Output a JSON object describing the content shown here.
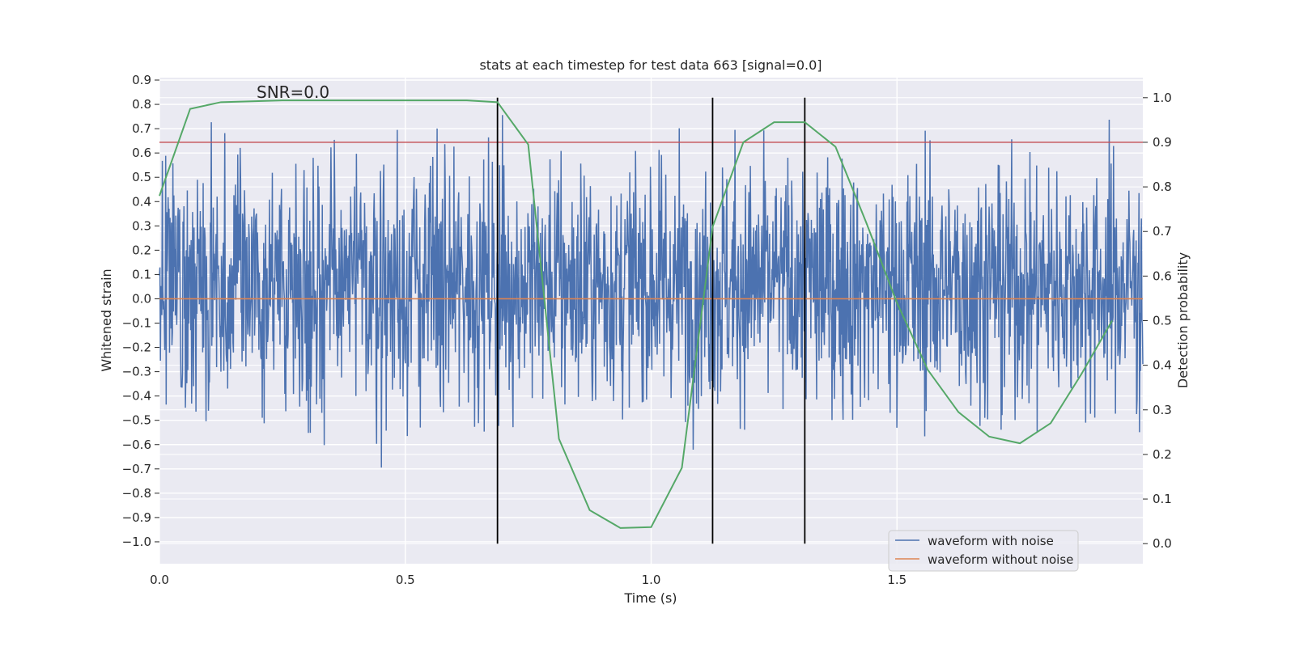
{
  "chart_data": {
    "type": "line",
    "title": "stats at each timestep for test data 663 [signal=0.0]",
    "xlabel": "Time (s)",
    "ylabel": "Whitened strain",
    "y2label": "Detection probability",
    "xlim": [
      0.0,
      2.0
    ],
    "ylim": [
      -1.09,
      0.91
    ],
    "y2lim": [
      -0.045,
      1.045
    ],
    "x_ticks": [
      0.0,
      0.5,
      1.0,
      1.5
    ],
    "x_tick_labels": [
      "0.0",
      "0.5",
      "1.0",
      "1.5"
    ],
    "y_ticks": [
      0.9,
      0.8,
      0.7,
      0.6,
      0.5,
      0.4,
      0.3,
      0.2,
      0.1,
      0.0,
      -0.1,
      -0.2,
      -0.3,
      -0.4,
      -0.5,
      -0.6,
      -0.7,
      -0.8,
      -0.9,
      -1.0
    ],
    "y_tick_labels": [
      "0.9",
      "0.8",
      "0.7",
      "0.6",
      "0.5",
      "0.4",
      "0.3",
      "0.2",
      "0.1",
      "0.0",
      "−0.1",
      "−0.2",
      "−0.3",
      "−0.4",
      "−0.5",
      "−0.6",
      "−0.7",
      "−0.8",
      "−0.9",
      "−1.0"
    ],
    "y2_ticks": [
      1.0,
      0.9,
      0.8,
      0.7,
      0.6,
      0.5,
      0.4,
      0.3,
      0.2,
      0.1,
      0.0
    ],
    "y2_tick_labels": [
      "1.0",
      "0.9",
      "0.8",
      "0.7",
      "0.6",
      "0.5",
      "0.4",
      "0.3",
      "0.2",
      "0.1",
      "0.0"
    ],
    "grid": true,
    "legend_position": "bottom-right",
    "annotation": "SNR=0.0",
    "series": [
      {
        "name": "waveform with noise",
        "axis": "left",
        "color": "#4c72b0",
        "kind": "noise",
        "sample_count": 2048,
        "amplitude_range": [
          -1.0,
          0.82
        ],
        "x_range": [
          0.0,
          2.0
        ]
      },
      {
        "name": "waveform without noise",
        "axis": "left",
        "color": "#dd8452",
        "x": [
          0.0,
          2.0
        ],
        "y": [
          0.0,
          0.0
        ]
      },
      {
        "axis": "right",
        "color": "#55a868",
        "x": [
          0.0,
          0.0625,
          0.125,
          0.1875,
          0.25,
          0.3125,
          0.375,
          0.4375,
          0.5,
          0.5625,
          0.625,
          0.6875,
          0.75,
          0.8125,
          0.875,
          0.9375,
          1.0,
          1.0625,
          1.125,
          1.1875,
          1.25,
          1.3125,
          1.375,
          1.4375,
          1.5,
          1.5625,
          1.625,
          1.6875,
          1.75,
          1.8125,
          1.875,
          1.9375
        ],
        "y": [
          0.78,
          0.975,
          0.99,
          0.992,
          0.994,
          0.994,
          0.994,
          0.994,
          0.994,
          0.994,
          0.994,
          0.99,
          0.895,
          0.235,
          0.075,
          0.035,
          0.037,
          0.17,
          0.71,
          0.9,
          0.945,
          0.945,
          0.89,
          0.72,
          0.54,
          0.39,
          0.295,
          0.24,
          0.225,
          0.27,
          0.38,
          0.5
        ]
      }
    ],
    "threshold": {
      "axis": "right",
      "value": 0.9,
      "color": "#c44e52"
    },
    "markers": {
      "axis": "right",
      "x": [
        0.6875,
        1.125,
        1.3125
      ],
      "y_range": [
        0.0,
        1.0
      ],
      "color": "#000000"
    }
  }
}
